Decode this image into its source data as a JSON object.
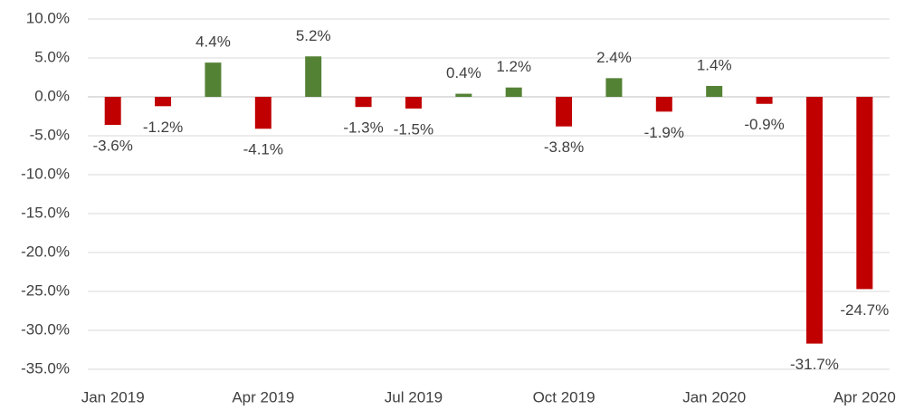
{
  "chart_data": {
    "type": "bar",
    "categories": [
      "Jan 2019",
      null,
      null,
      "Apr 2019",
      null,
      null,
      "Jul 2019",
      null,
      null,
      "Oct 2019",
      null,
      null,
      "Jan 2020",
      null,
      null,
      "Apr 2020"
    ],
    "values": [
      -3.6,
      -1.2,
      4.4,
      -4.1,
      5.2,
      -1.3,
      -1.5,
      0.4,
      1.2,
      -3.8,
      2.4,
      -1.9,
      1.4,
      -0.9,
      -31.7,
      -24.7
    ],
    "value_labels": [
      "-3.6%",
      "-1.2%",
      "4.4%",
      "-4.1%",
      "5.2%",
      "-1.3%",
      "-1.5%",
      "0.4%",
      "1.2%",
      "-3.8%",
      "2.4%",
      "-1.9%",
      "1.4%",
      "-0.9%",
      "-31.7%",
      "-24.7%"
    ],
    "positive_color": "#548235",
    "negative_color": "#c00000",
    "ylim": [
      -35,
      10
    ],
    "yticks": [
      {
        "value": 10,
        "label": "10.0%"
      },
      {
        "value": 5,
        "label": "5.0%"
      },
      {
        "value": 0,
        "label": "0.0%"
      },
      {
        "value": -5,
        "label": "-5.0%"
      },
      {
        "value": -10,
        "label": "-10.0%"
      },
      {
        "value": -15,
        "label": "-15.0%"
      },
      {
        "value": -20,
        "label": "-20.0%"
      },
      {
        "value": -25,
        "label": "-25.0%"
      },
      {
        "value": -30,
        "label": "-30.0%"
      },
      {
        "value": -35,
        "label": "-35.0%"
      }
    ],
    "grid": true
  }
}
